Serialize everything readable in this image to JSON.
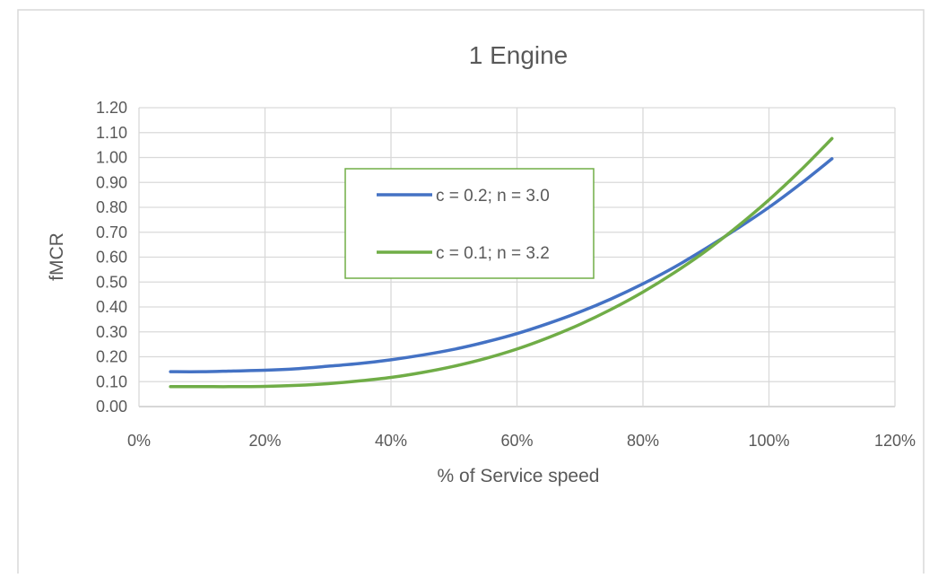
{
  "chart_data": {
    "type": "line",
    "title": "1 Engine",
    "xlabel": "% of Service speed",
    "ylabel": "fMCR",
    "xlim": [
      0,
      120
    ],
    "ylim": [
      0,
      1.2
    ],
    "x_ticks": [
      "0%",
      "20%",
      "40%",
      "60%",
      "80%",
      "100%",
      "120%"
    ],
    "y_ticks": [
      "0.00",
      "0.10",
      "0.20",
      "0.30",
      "0.40",
      "0.50",
      "0.60",
      "0.70",
      "0.80",
      "0.90",
      "1.00",
      "1.10",
      "1.20"
    ],
    "grid": true,
    "legend_position": "center",
    "x": [
      5,
      10,
      15,
      20,
      25,
      30,
      35,
      40,
      45,
      50,
      55,
      60,
      65,
      70,
      75,
      80,
      85,
      90,
      95,
      100,
      105,
      110
    ],
    "series": [
      {
        "name": "c = 0.2; n = 3.0",
        "color": "#4472c4",
        "values": [
          0.14,
          0.14,
          0.143,
          0.146,
          0.152,
          0.162,
          0.173,
          0.188,
          0.207,
          0.23,
          0.259,
          0.293,
          0.334,
          0.38,
          0.433,
          0.493,
          0.56,
          0.635,
          0.715,
          0.8,
          0.894,
          0.995
        ]
      },
      {
        "name": "c = 0.1; n = 3.2",
        "color": "#70ad47",
        "values": [
          0.08,
          0.08,
          0.08,
          0.081,
          0.085,
          0.092,
          0.103,
          0.117,
          0.137,
          0.162,
          0.193,
          0.231,
          0.277,
          0.33,
          0.391,
          0.46,
          0.538,
          0.625,
          0.723,
          0.83,
          0.948,
          1.076
        ]
      }
    ]
  }
}
